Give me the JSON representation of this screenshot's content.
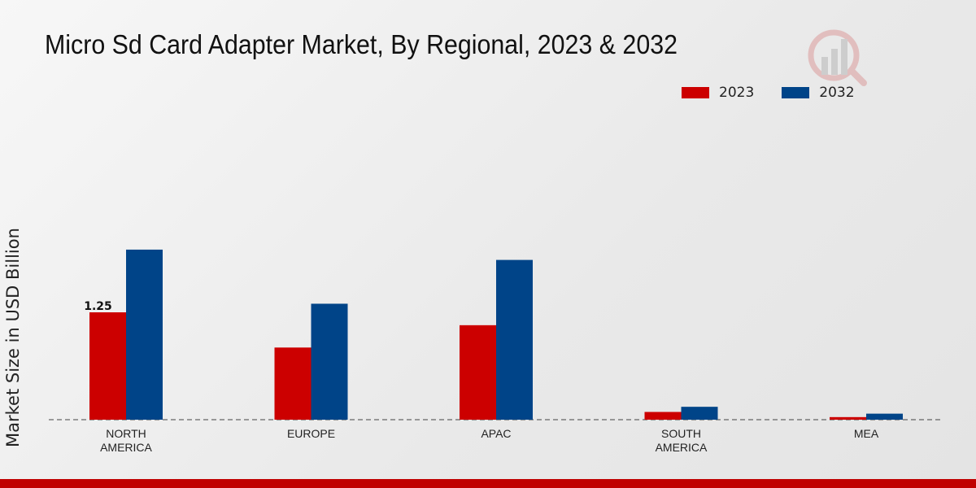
{
  "chart_data": {
    "type": "bar",
    "title": "Micro Sd Card Adapter Market, By Regional, 2023 & 2032",
    "xlabel": "",
    "ylabel": "Market Size in USD Billion",
    "categories": [
      "NORTH\nAMERICA",
      "EUROPE",
      "APAC",
      "SOUTH\nAMERICA",
      "MEA"
    ],
    "series": [
      {
        "name": "2023",
        "color": "#cc0000",
        "values": [
          1.25,
          0.84,
          1.1,
          0.09,
          0.03
        ]
      },
      {
        "name": "2032",
        "color": "#004488",
        "values": [
          1.98,
          1.35,
          1.86,
          0.15,
          0.07
        ]
      }
    ],
    "data_labels": [
      {
        "series": "2023",
        "category_index": 0,
        "text": "1.25"
      }
    ],
    "ylim": [
      0,
      2.6
    ],
    "grid": false,
    "legend_position": "top-right"
  }
}
